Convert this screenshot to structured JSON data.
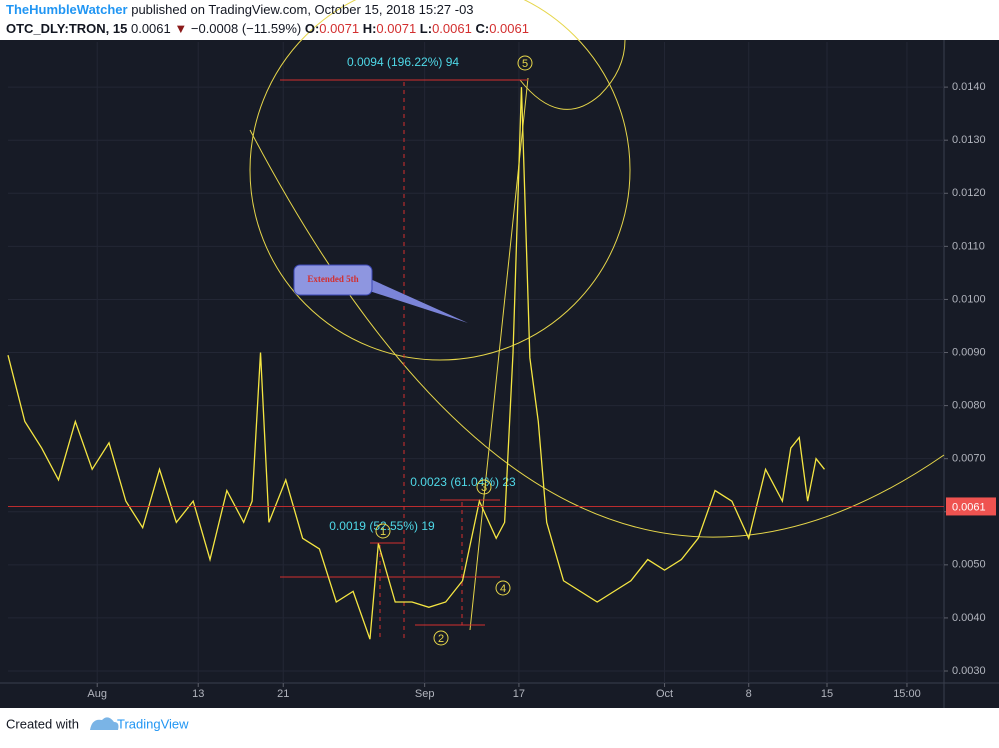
{
  "header": {
    "author": "TheHumbleWatcher",
    "published": "published on TradingView.com, October 15, 2018 15:27 -03",
    "symbol": "OTC_DLY:TRON, 15",
    "last": "0.0061",
    "arrow": "▼",
    "change": "−0.0008 (−11.59%)",
    "o_label": "O:",
    "o": "0.0071",
    "h_label": "H:",
    "h": "0.0071",
    "l_label": "L:",
    "l": "0.0061",
    "c_label": "C:",
    "c": "0.0061"
  },
  "annotations": {
    "m1": "0.0094 (196.22%) 94",
    "m2": "0.0023 (61.04%) 23",
    "m3": "0.0019 (52.55%) 19",
    "callout": "Extended 5th",
    "w1": "1",
    "w2": "2",
    "w3": "3",
    "w4": "4",
    "w5": "5"
  },
  "footer": {
    "created": "Created with",
    "brand": "TradingView"
  },
  "chart_data": {
    "type": "line",
    "x": [
      0,
      2,
      4,
      6,
      8,
      10,
      12,
      14,
      16,
      18,
      20,
      22,
      24,
      26,
      28,
      29,
      30,
      31,
      33,
      35,
      37,
      39,
      41,
      43,
      44,
      46,
      48,
      50,
      52,
      54,
      56,
      58,
      59,
      60,
      61,
      62,
      63,
      64,
      66,
      68,
      70,
      72,
      74,
      76,
      78,
      80,
      82,
      84,
      86,
      88,
      90,
      92,
      93,
      94,
      95,
      96,
      97
    ],
    "series": [
      {
        "name": "TRON",
        "color": "#f5e642",
        "values": [
          0.00895,
          0.0077,
          0.0072,
          0.0066,
          0.0077,
          0.0068,
          0.0073,
          0.0062,
          0.0057,
          0.0068,
          0.0058,
          0.0062,
          0.0051,
          0.0064,
          0.0058,
          0.0062,
          0.009,
          0.0058,
          0.0066,
          0.0055,
          0.0053,
          0.0043,
          0.0045,
          0.0036,
          0.0054,
          0.0043,
          0.0043,
          0.0042,
          0.0043,
          0.0047,
          0.0062,
          0.0055,
          0.0058,
          0.009,
          0.014,
          0.0089,
          0.0077,
          0.0058,
          0.0047,
          0.0045,
          0.0043,
          0.0045,
          0.0047,
          0.0051,
          0.0049,
          0.0051,
          0.0055,
          0.0064,
          0.0062,
          0.0055,
          0.0068,
          0.0062,
          0.0072,
          0.0074,
          0.0062,
          0.007,
          0.0068
        ]
      }
    ],
    "last_price": 0.0061,
    "xlim": [
      0,
      111.2
    ],
    "xticks": [
      {
        "value": 10.6,
        "label": "Aug"
      },
      {
        "value": 22.6,
        "label": "13"
      },
      {
        "value": 32.7,
        "label": "21"
      },
      {
        "value": 49.5,
        "label": "Sep"
      },
      {
        "value": 60.7,
        "label": "17"
      },
      {
        "value": 78,
        "label": "Oct"
      },
      {
        "value": 88,
        "label": "8"
      },
      {
        "value": 97.3,
        "label": "15"
      },
      {
        "value": 106.8,
        "label": "15:00"
      }
    ],
    "ylim": [
      0.002774,
      0.01485
    ],
    "yticks": [
      {
        "value": 0.003,
        "label": "0.0030"
      },
      {
        "value": 0.004,
        "label": "0.0040"
      },
      {
        "value": 0.005,
        "label": "0.0050"
      },
      {
        "value": 0.006,
        "label": "0.0060"
      },
      {
        "value": 0.007,
        "label": "0.0070"
      },
      {
        "value": 0.008,
        "label": "0.0080"
      },
      {
        "value": 0.009,
        "label": "0.0090"
      },
      {
        "value": 0.01,
        "label": "0.0100"
      },
      {
        "value": 0.011,
        "label": "0.0110"
      },
      {
        "value": 0.012,
        "label": "0.0120"
      },
      {
        "value": 0.013,
        "label": "0.0130"
      },
      {
        "value": 0.014,
        "label": "0.0140"
      }
    ],
    "grid": true
  }
}
